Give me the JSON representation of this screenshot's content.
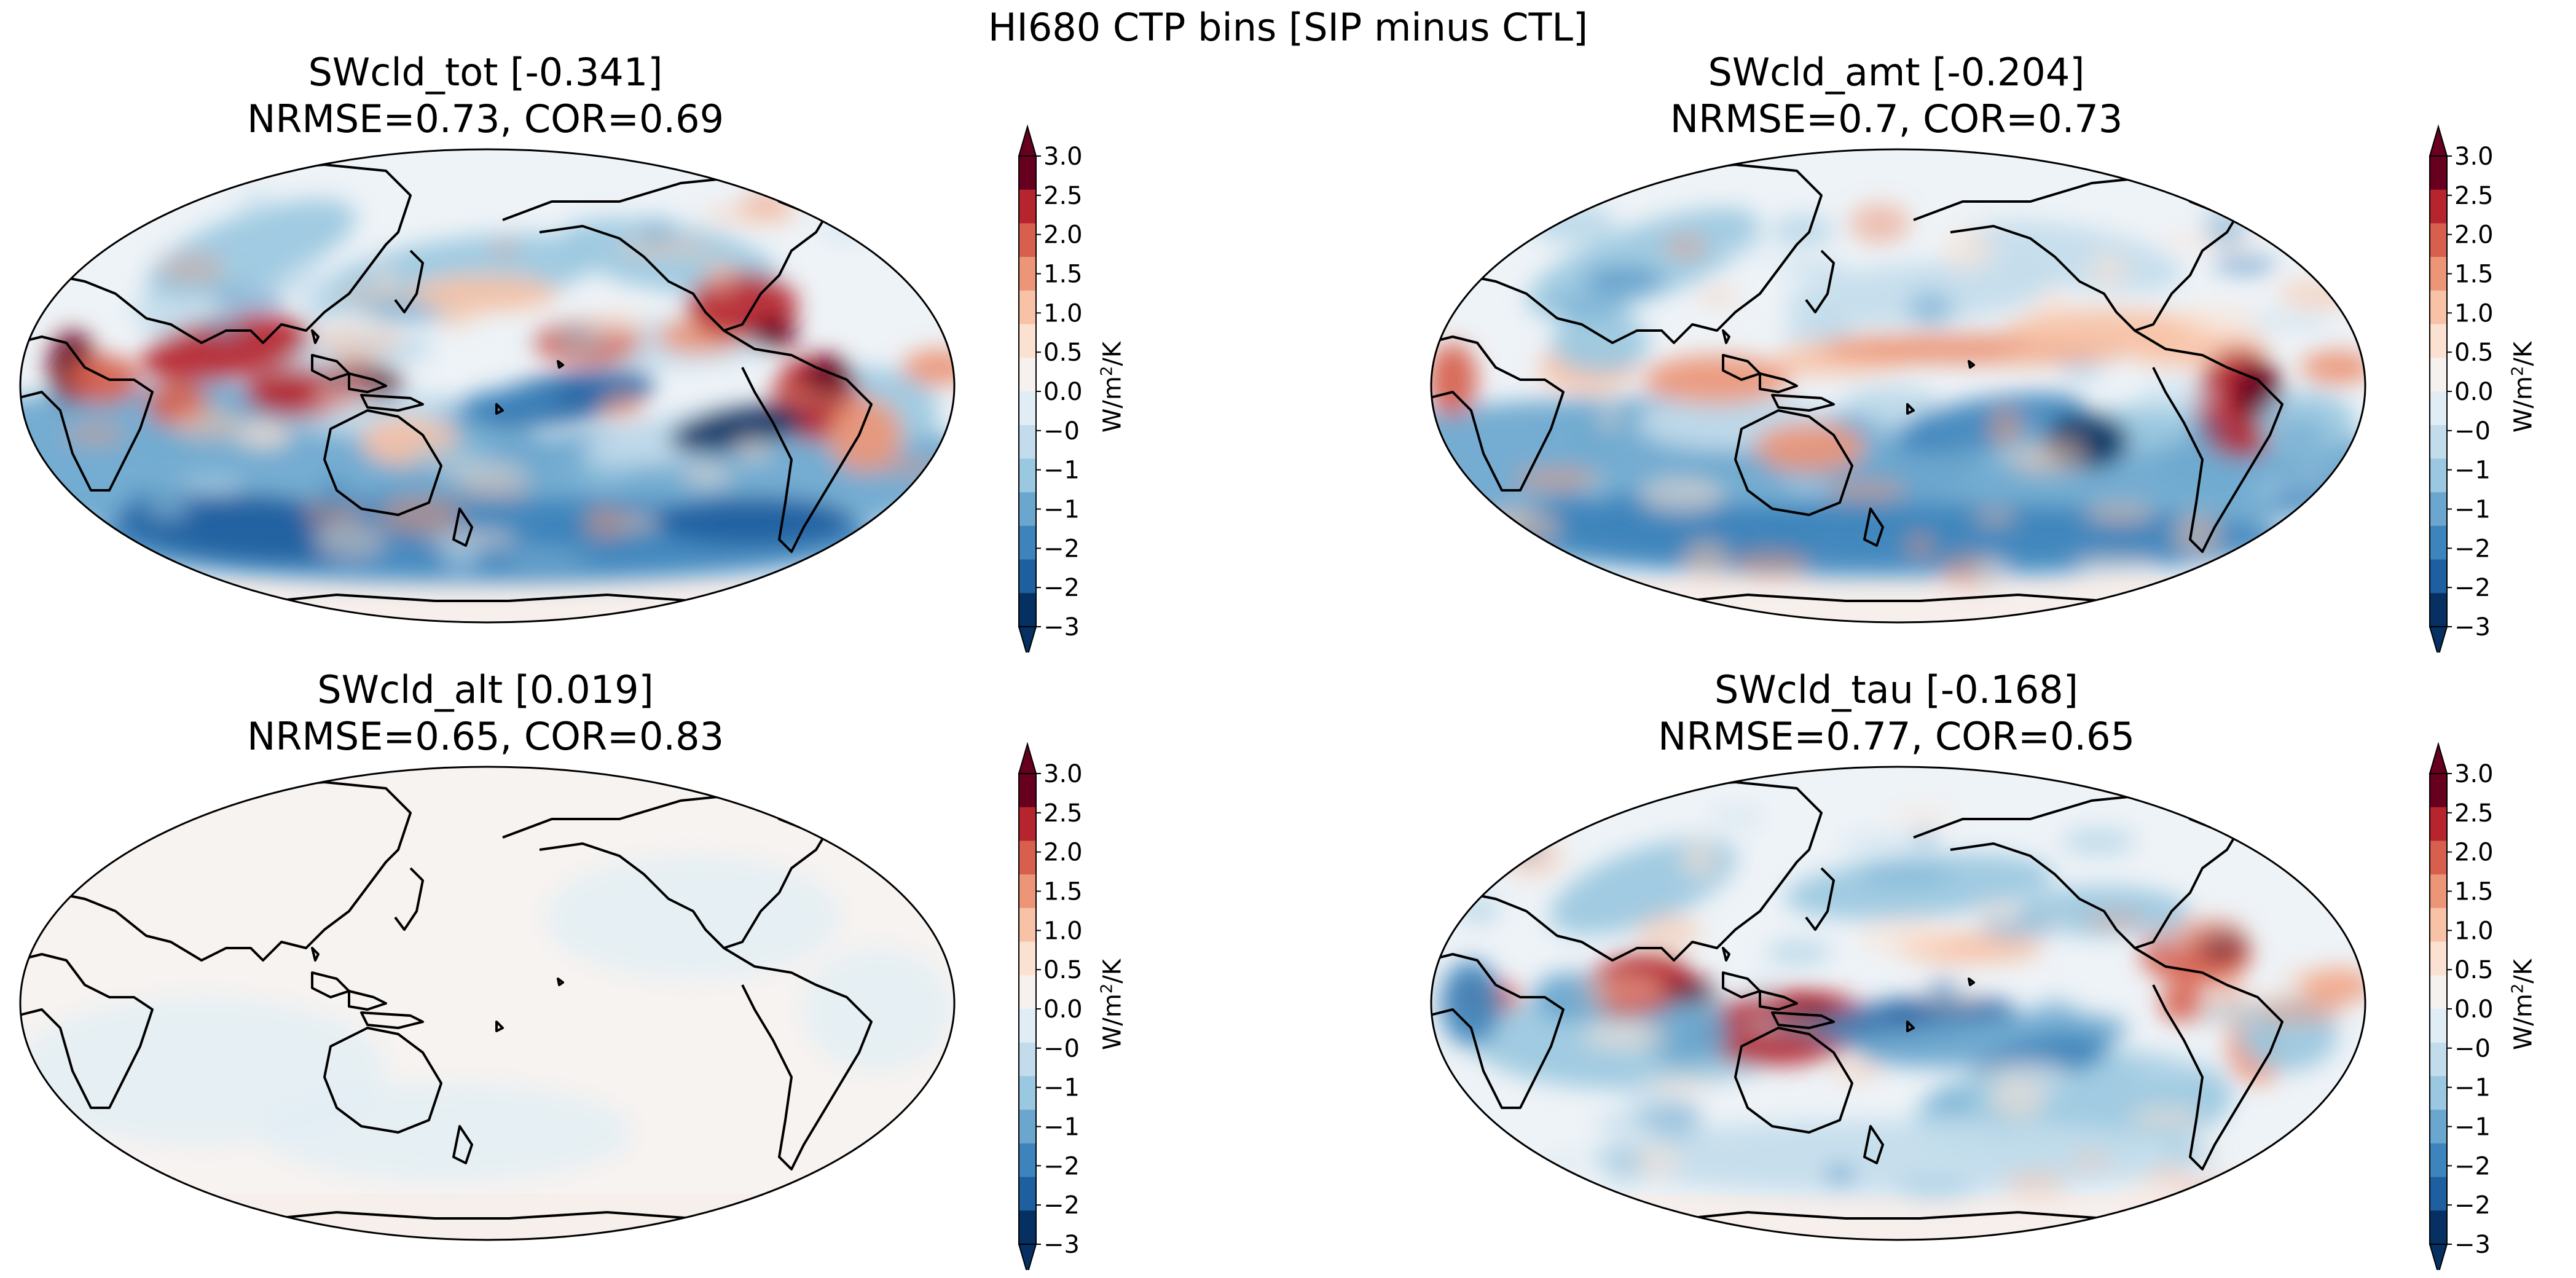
{
  "figure": {
    "suptitle": "HI680 CTP bins [SIP minus CTL]"
  },
  "colorbar": {
    "ticks": [
      "3.0",
      "2.5",
      "2.0",
      "1.5",
      "1.0",
      "0.5",
      "0.0",
      "−0.5",
      "−1.0",
      "−1.5",
      "−2.0",
      "−2.5",
      "−3.0"
    ],
    "units_prefix": "W/m",
    "units_power": "2",
    "units_suffix": "/K",
    "vmin": -3.0,
    "vmax": 3.0,
    "step": 0.25,
    "colors_low_to_high": [
      "#053061",
      "#1e5fa0",
      "#3d84bc",
      "#6aa6cd",
      "#9ac8e0",
      "#c3dcec",
      "#e1edf4",
      "#f4f1ef",
      "#fbe1d2",
      "#f7c2a6",
      "#ec9677",
      "#d6604d",
      "#b6252e",
      "#67001f"
    ],
    "extend": "both"
  },
  "panels": [
    {
      "title": "SWcld_tot [-0.341]",
      "stats": "NRMSE=0.73, COR=0.69",
      "style": "strong"
    },
    {
      "title": "SWcld_amt [-0.204]",
      "stats": "NRMSE=0.7, COR=0.73",
      "style": "medium"
    },
    {
      "title": "SWcld_alt [0.019]",
      "stats": "NRMSE=0.65, COR=0.83",
      "style": "flat"
    },
    {
      "title": "SWcld_tau [-0.168]",
      "stats": "NRMSE=0.77, COR=0.65",
      "style": "tau"
    }
  ],
  "chart_data": [
    {
      "type": "heatmap",
      "projection": "Robinson",
      "central_longitude": 180,
      "field": "SWcld_tot",
      "global_mean": -0.341,
      "NRMSE": 0.73,
      "COR": 0.69,
      "colorbar_range": [
        -3.0,
        3.0
      ],
      "colorbar_units": "W/m2/K"
    },
    {
      "type": "heatmap",
      "projection": "Robinson",
      "central_longitude": 180,
      "field": "SWcld_amt",
      "global_mean": -0.204,
      "NRMSE": 0.7,
      "COR": 0.73,
      "colorbar_range": [
        -3.0,
        3.0
      ],
      "colorbar_units": "W/m2/K"
    },
    {
      "type": "heatmap",
      "projection": "Robinson",
      "central_longitude": 180,
      "field": "SWcld_alt",
      "global_mean": 0.019,
      "NRMSE": 0.65,
      "COR": 0.83,
      "colorbar_range": [
        -3.0,
        3.0
      ],
      "colorbar_units": "W/m2/K"
    },
    {
      "type": "heatmap",
      "projection": "Robinson",
      "central_longitude": 180,
      "field": "SWcld_tau",
      "global_mean": -0.168,
      "NRMSE": 0.77,
      "COR": 0.65,
      "colorbar_range": [
        -3.0,
        3.0
      ],
      "colorbar_units": "W/m2/K"
    }
  ]
}
